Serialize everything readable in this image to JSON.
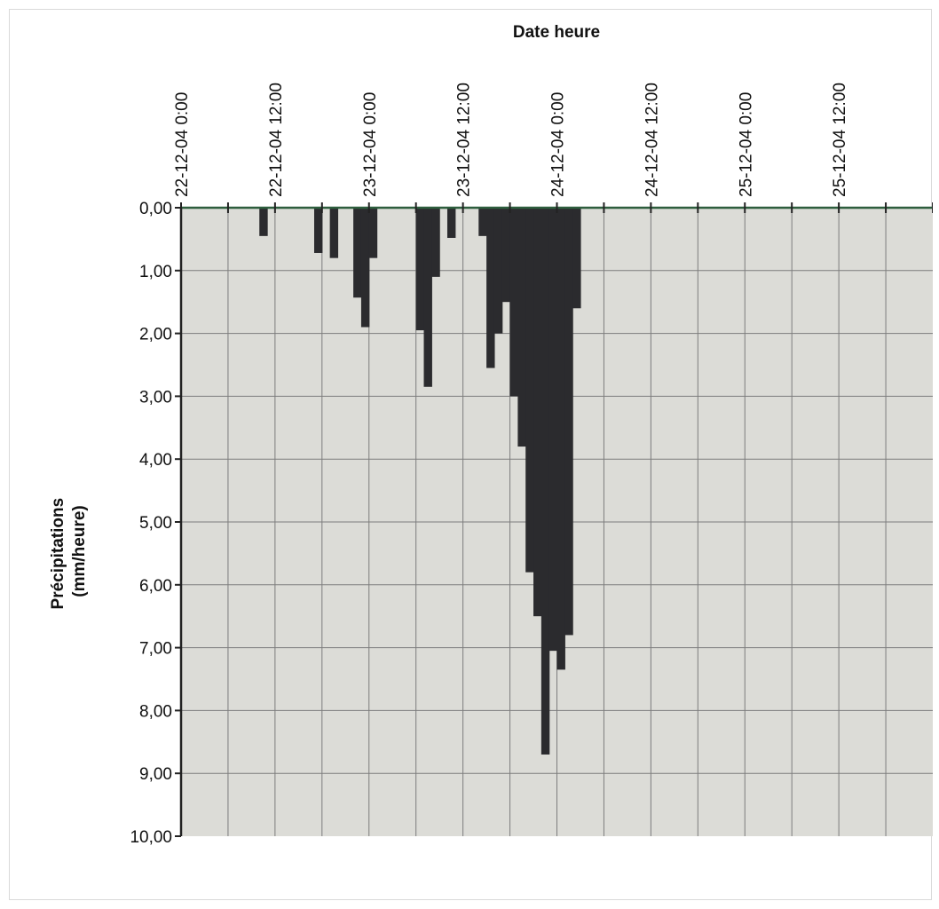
{
  "chart_data": {
    "type": "bar",
    "orientation": "inverted-hyetograph",
    "xlabel": "Date heure",
    "ylabel_lines": [
      "Précipitations",
      "(mm/heure)"
    ],
    "x_axis_position": "top",
    "y_axis_inverted": true,
    "ylim": [
      0,
      10
    ],
    "xlim_hours": [
      0,
      96
    ],
    "x_tick_labels": [
      "22-12-04 0:00",
      "22-12-04 12:00",
      "23-12-04 0:00",
      "23-12-04 12:00",
      "24-12-04 0:00",
      "24-12-04 12:00",
      "25-12-04 0:00",
      "25-12-04 12:00"
    ],
    "x_tick_hours": [
      0,
      12,
      24,
      36,
      48,
      60,
      72,
      84
    ],
    "y_tick_values": [
      0,
      1,
      2,
      3,
      4,
      5,
      6,
      7,
      8,
      9,
      10
    ],
    "y_tick_labels": [
      "0,00",
      "1,00",
      "2,00",
      "3,00",
      "4,00",
      "5,00",
      "6,00",
      "7,00",
      "8,00",
      "9,00",
      "10,00"
    ],
    "grid": true,
    "bar_color": "#2b2b2e",
    "plot_background": "#dcdcd7",
    "series": [
      {
        "hour_starts": [
          10,
          17,
          19,
          22,
          23,
          24,
          30,
          31,
          32,
          34,
          38,
          39,
          40,
          41,
          42,
          43,
          44,
          45,
          46,
          47,
          48,
          49,
          50,
          51
        ],
        "values": [
          0.45,
          0.72,
          0.8,
          1.43,
          1.9,
          0.8,
          1.95,
          2.85,
          1.1,
          0.48,
          0.45,
          2.55,
          2.0,
          1.5,
          3.0,
          3.8,
          5.8,
          6.5,
          8.7,
          7.05,
          7.35,
          6.8,
          1.6,
          0.0
        ]
      }
    ]
  }
}
